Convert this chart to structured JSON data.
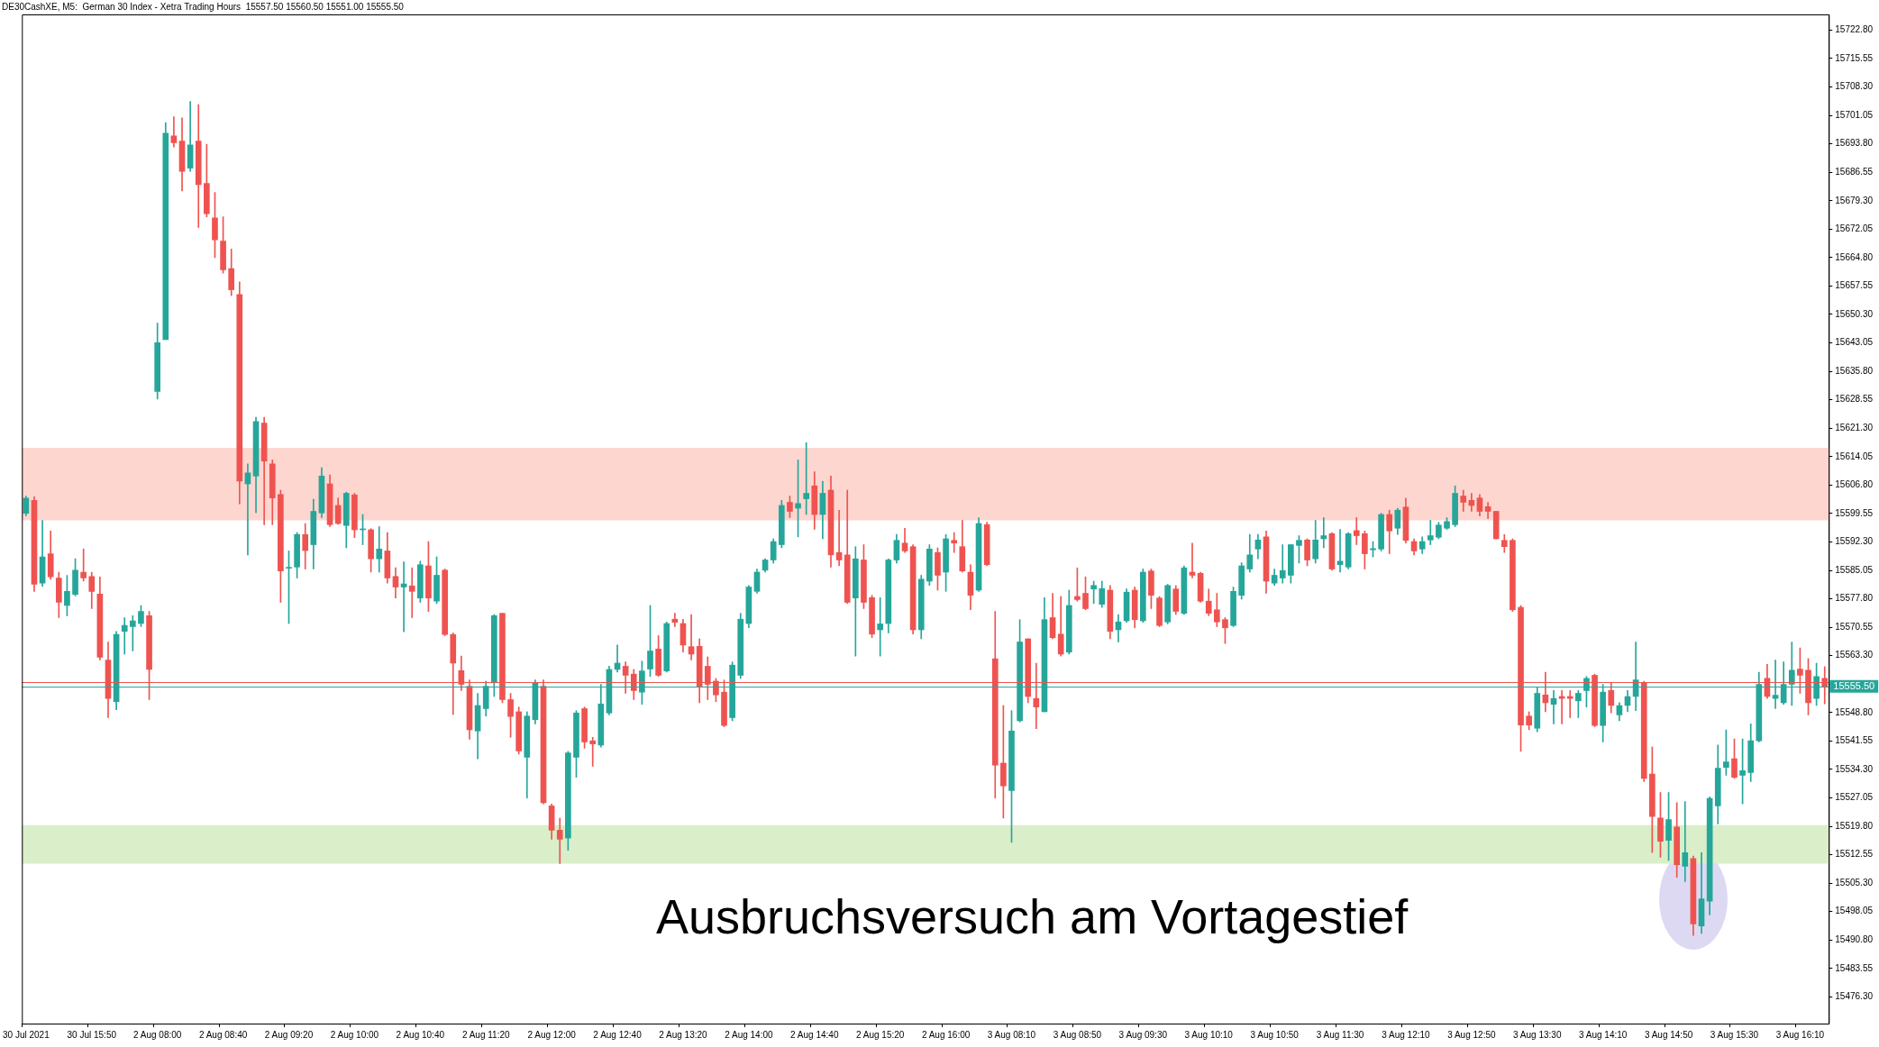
{
  "chart_data": {
    "type": "candlestick",
    "title": "DE30CashXE, M5:  German 30 Index - Xetra Trading Hours  15557.50 15560.50 15551.00 15555.50",
    "categories": [
      "30 Jul 2021",
      null,
      null,
      null,
      null,
      null,
      null,
      null,
      "30 Jul 15:50",
      null,
      null,
      null,
      null,
      null,
      null,
      null,
      "2 Aug 08:00",
      null,
      null,
      null,
      null,
      null,
      null,
      null,
      "2 Aug 08:40",
      null,
      null,
      null,
      null,
      null,
      null,
      null,
      "2 Aug 09:20",
      null,
      null,
      null,
      null,
      null,
      null,
      null,
      "2 Aug 10:00",
      null,
      null,
      null,
      null,
      null,
      null,
      null,
      "2 Aug 10:40",
      null,
      null,
      null,
      null,
      null,
      null,
      null,
      "2 Aug 11:20",
      null,
      null,
      null,
      null,
      null,
      null,
      null,
      "2 Aug 12:00",
      null,
      null,
      null,
      null,
      null,
      null,
      null,
      "2 Aug 12:40",
      null,
      null,
      null,
      null,
      null,
      null,
      null,
      "2 Aug 13:20",
      null,
      null,
      null,
      null,
      null,
      null,
      null,
      "2 Aug 14:00",
      null,
      null,
      null,
      null,
      null,
      null,
      null,
      "2 Aug 14:40",
      null,
      null,
      null,
      null,
      null,
      null,
      null,
      "2 Aug 15:20",
      null,
      null,
      null,
      null,
      null,
      null,
      null,
      "2 Aug 16:00",
      null,
      null,
      null,
      null,
      null,
      null,
      null,
      "3 Aug 08:10",
      null,
      null,
      null,
      null,
      null,
      null,
      null,
      "3 Aug 08:50",
      null,
      null,
      null,
      null,
      null,
      null,
      null,
      "3 Aug 09:30",
      null,
      null,
      null,
      null,
      null,
      null,
      null,
      "3 Aug 10:10",
      null,
      null,
      null,
      null,
      null,
      null,
      null,
      "3 Aug 10:50",
      null,
      null,
      null,
      null,
      null,
      null,
      null,
      "3 Aug 11:30",
      null,
      null,
      null,
      null,
      null,
      null,
      null,
      "3 Aug 12:10",
      null,
      null,
      null,
      null,
      null,
      null,
      null,
      "3 Aug 12:50",
      null,
      null,
      null,
      null,
      null,
      null,
      null,
      "3 Aug 13:30",
      null,
      null,
      null,
      null,
      null,
      null,
      null,
      "3 Aug 14:10",
      null,
      null,
      null,
      null,
      null,
      null,
      null,
      "3 Aug 14:50",
      null,
      null,
      null,
      null,
      null,
      null,
      null,
      "3 Aug 15:30",
      null,
      null,
      null,
      null,
      null,
      null,
      null,
      "3 Aug 16:10",
      null,
      null,
      null
    ],
    "ohlc": [
      [
        15599.6,
        15604.0,
        15599.0,
        15603.5
      ],
      [
        15602.9,
        15603.8,
        15579.7,
        15581.5
      ],
      [
        15581.8,
        15597.8,
        15581.0,
        15588.5
      ],
      [
        15589.3,
        15595.1,
        15582.8,
        15583.4
      ],
      [
        15583.1,
        15584.6,
        15573.0,
        15576.9
      ],
      [
        15576.1,
        15583.8,
        15573.5,
        15579.7
      ],
      [
        15578.9,
        15588.0,
        15578.5,
        15585.1
      ],
      [
        15584.6,
        15590.5,
        15582.3,
        15583.1
      ],
      [
        15583.5,
        15584.6,
        15575.3,
        15579.7
      ],
      [
        15579.0,
        15583.4,
        15562.2,
        15562.9
      ],
      [
        15562.2,
        15566.8,
        15547.5,
        15552.4
      ],
      [
        15551.6,
        15569.5,
        15549.5,
        15568.7
      ],
      [
        15569.5,
        15573.0,
        15563.7,
        15571.0
      ],
      [
        15570.7,
        15573.5,
        15564.5,
        15572.2
      ],
      [
        15571.5,
        15576.1,
        15570.7,
        15574.6
      ],
      [
        15573.5,
        15574.6,
        15552.1,
        15559.8
      ],
      [
        15630.7,
        15648.1,
        15628.7,
        15643.1
      ],
      [
        15643.9,
        15699.2,
        15643.9,
        15696.5
      ],
      [
        15695.8,
        15700.7,
        15693.0,
        15694.1
      ],
      [
        15694.5,
        15700.4,
        15681.8,
        15686.8
      ],
      [
        15687.6,
        15704.6,
        15686.8,
        15693.5
      ],
      [
        15694.5,
        15703.8,
        15672.5,
        15683.4
      ],
      [
        15683.7,
        15693.7,
        15675.2,
        15676.0
      ],
      [
        15674.9,
        15681.4,
        15664.8,
        15669.3
      ],
      [
        15669.0,
        15675.2,
        15660.8,
        15661.7
      ],
      [
        15662.0,
        15667.0,
        15655.1,
        15656.6
      ],
      [
        15655.4,
        15658.6,
        15602.0,
        15607.8
      ],
      [
        15607.1,
        15612.2,
        15589.0,
        15609.9
      ],
      [
        15609.1,
        15624.1,
        15599.8,
        15623.0
      ],
      [
        15622.6,
        15624.1,
        15596.7,
        15612.9
      ],
      [
        15612.2,
        15613.2,
        15596.7,
        15603.5
      ],
      [
        15604.4,
        15605.5,
        15576.9,
        15584.9
      ],
      [
        15585.6,
        15590.0,
        15571.5,
        15585.8
      ],
      [
        15585.9,
        15594.7,
        15583.1,
        15594.2
      ],
      [
        15594.2,
        15597.0,
        15585.4,
        15590.1
      ],
      [
        15591.6,
        15603.2,
        15585.4,
        15600.1
      ],
      [
        15599.7,
        15611.2,
        15598.5,
        15609.1
      ],
      [
        15607.1,
        15609.4,
        15596.2,
        15596.7
      ],
      [
        15601.6,
        15603.5,
        15596.8,
        15597.0
      ],
      [
        15596.5,
        15605.0,
        15590.8,
        15604.7
      ],
      [
        15604.3,
        15604.7,
        15593.4,
        15595.4
      ],
      [
        15595.4,
        15599.3,
        15591.6,
        15595.6
      ],
      [
        15595.4,
        15595.7,
        15584.6,
        15588.0
      ],
      [
        15588.0,
        15596.2,
        15584.6,
        15590.5
      ],
      [
        15590.0,
        15594.7,
        15581.8,
        15583.1
      ],
      [
        15583.5,
        15585.7,
        15578.0,
        15580.8
      ],
      [
        15580.8,
        15587.2,
        15569.4,
        15581.6
      ],
      [
        15581.1,
        15585.7,
        15573.0,
        15579.7
      ],
      [
        15578.0,
        15587.4,
        15576.9,
        15586.5
      ],
      [
        15586.2,
        15592.4,
        15574.6,
        15578.0
      ],
      [
        15577.2,
        15588.5,
        15576.6,
        15583.8
      ],
      [
        15585.1,
        15585.4,
        15568.4,
        15568.7
      ],
      [
        15568.7,
        15569.1,
        15548.3,
        15561.4
      ],
      [
        15559.5,
        15563.2,
        15554.4,
        15556.0
      ],
      [
        15555.5,
        15557.1,
        15542.0,
        15544.4
      ],
      [
        15544.1,
        15553.7,
        15537.0,
        15550.6
      ],
      [
        15549.8,
        15556.8,
        15547.9,
        15555.5
      ],
      [
        15556.4,
        15573.8,
        15552.9,
        15573.5
      ],
      [
        15574.1,
        15574.1,
        15551.3,
        15552.1
      ],
      [
        15552.1,
        15553.7,
        15542.5,
        15547.8
      ],
      [
        15549.0,
        15550.2,
        15538.2,
        15539.0
      ],
      [
        15537.4,
        15549.0,
        15527.0,
        15547.9
      ],
      [
        15547.0,
        15557.1,
        15545.9,
        15556.4
      ],
      [
        15555.5,
        15557.1,
        15525.5,
        15525.8
      ],
      [
        15525.0,
        15525.5,
        15516.5,
        15518.8
      ],
      [
        15518.8,
        15521.9,
        15510.3,
        15516.5
      ],
      [
        15516.8,
        15538.9,
        15513.7,
        15538.5
      ],
      [
        15537.4,
        15549.3,
        15532.3,
        15548.7
      ],
      [
        15549.8,
        15550.2,
        15539.7,
        15541.3
      ],
      [
        15541.6,
        15542.5,
        15535.1,
        15540.8
      ],
      [
        15540.5,
        15556.0,
        15540.0,
        15551.0
      ],
      [
        15548.7,
        15560.6,
        15548.2,
        15559.8
      ],
      [
        15559.8,
        15566.0,
        15559.1,
        15561.4
      ],
      [
        15560.6,
        15561.7,
        15553.7,
        15558.3
      ],
      [
        15558.6,
        15559.8,
        15552.1,
        15554.4
      ],
      [
        15554.0,
        15561.9,
        15550.9,
        15559.4
      ],
      [
        15559.9,
        15576.1,
        15558.0,
        15564.5
      ],
      [
        15565.0,
        15568.4,
        15558.0,
        15558.3
      ],
      [
        15559.4,
        15571.9,
        15559.1,
        15571.5
      ],
      [
        15572.6,
        15574.1,
        15570.7,
        15571.8
      ],
      [
        15571.5,
        15572.6,
        15564.2,
        15566.0
      ],
      [
        15565.6,
        15573.8,
        15562.2,
        15563.7
      ],
      [
        15565.7,
        15567.6,
        15551.3,
        15555.5
      ],
      [
        15560.6,
        15563.0,
        15552.1,
        15556.0
      ],
      [
        15556.8,
        15557.5,
        15551.6,
        15553.3
      ],
      [
        15554.0,
        15557.1,
        15545.2,
        15545.5
      ],
      [
        15547.5,
        15561.7,
        15546.7,
        15560.9
      ],
      [
        15558.3,
        15574.1,
        15557.5,
        15572.6
      ],
      [
        15571.5,
        15581.2,
        15570.4,
        15580.8
      ],
      [
        15579.7,
        15585.4,
        15579.2,
        15584.6
      ],
      [
        15585.1,
        15588.0,
        15584.6,
        15587.7
      ],
      [
        15587.7,
        15593.1,
        15586.9,
        15592.4
      ],
      [
        15591.6,
        15602.9,
        15590.8,
        15601.6
      ],
      [
        15602.4,
        15604.0,
        15598.5,
        15600.1
      ],
      [
        15600.9,
        15613.2,
        15593.6,
        15602.1
      ],
      [
        15603.3,
        15617.6,
        15599.3,
        15604.7
      ],
      [
        15606.6,
        15610.2,
        15595.5,
        15599.3
      ],
      [
        15599.3,
        15607.8,
        15593.1,
        15604.7
      ],
      [
        15605.5,
        15609.1,
        15585.9,
        15589.0
      ],
      [
        15589.6,
        15600.4,
        15586.2,
        15587.7
      ],
      [
        15589.0,
        15605.5,
        15576.6,
        15576.9
      ],
      [
        15578.0,
        15591.1,
        15563.2,
        15588.0
      ],
      [
        15587.7,
        15591.6,
        15575.3,
        15576.9
      ],
      [
        15578.1,
        15578.7,
        15567.9,
        15568.8
      ],
      [
        15569.9,
        15578.1,
        15563.2,
        15571.4
      ],
      [
        15571.5,
        15588.0,
        15569.1,
        15587.7
      ],
      [
        15587.7,
        15594.2,
        15586.9,
        15592.7
      ],
      [
        15592.0,
        15595.8,
        15589.6,
        15590.0
      ],
      [
        15591.1,
        15591.6,
        15568.8,
        15569.9
      ],
      [
        15569.9,
        15583.8,
        15567.6,
        15582.8
      ],
      [
        15582.3,
        15591.6,
        15581.2,
        15590.5
      ],
      [
        15589.6,
        15590.8,
        15580.0,
        15583.8
      ],
      [
        15584.6,
        15594.2,
        15579.7,
        15593.1
      ],
      [
        15592.7,
        15594.7,
        15589.6,
        15592.0
      ],
      [
        15591.1,
        15597.8,
        15584.6,
        15584.9
      ],
      [
        15584.6,
        15586.5,
        15575.0,
        15578.7
      ],
      [
        15580.0,
        15598.5,
        15579.7,
        15597.0
      ],
      [
        15596.7,
        15597.3,
        15586.2,
        15586.5
      ],
      [
        15562.5,
        15574.6,
        15527.0,
        15535.4
      ],
      [
        15535.9,
        15550.6,
        15521.9,
        15530.1
      ],
      [
        15528.9,
        15549.3,
        15515.7,
        15544.1
      ],
      [
        15546.7,
        15572.5,
        15546.4,
        15566.8
      ],
      [
        15567.6,
        15567.6,
        15551.3,
        15552.9
      ],
      [
        15552.4,
        15561.4,
        15544.7,
        15550.2
      ],
      [
        15549.0,
        15578.1,
        15549.0,
        15572.5
      ],
      [
        15573.0,
        15579.2,
        15567.6,
        15567.9
      ],
      [
        15568.8,
        15578.4,
        15563.2,
        15563.7
      ],
      [
        15564.2,
        15580.0,
        15563.7,
        15576.1
      ],
      [
        15578.4,
        15585.7,
        15577.2,
        15577.6
      ],
      [
        15579.2,
        15583.4,
        15575.0,
        15575.3
      ],
      [
        15580.3,
        15582.3,
        15576.6,
        15581.2
      ],
      [
        15576.4,
        15582.3,
        15575.6,
        15580.4
      ],
      [
        15580.0,
        15581.2,
        15567.6,
        15569.5
      ],
      [
        15569.9,
        15573.8,
        15566.8,
        15571.9
      ],
      [
        15572.2,
        15580.3,
        15571.8,
        15579.5
      ],
      [
        15580.0,
        15580.8,
        15570.4,
        15572.5
      ],
      [
        15572.2,
        15585.4,
        15571.8,
        15584.6
      ],
      [
        15584.9,
        15585.4,
        15575.3,
        15578.7
      ],
      [
        15578.0,
        15578.4,
        15570.7,
        15571.0
      ],
      [
        15571.9,
        15581.5,
        15571.4,
        15581.2
      ],
      [
        15580.3,
        15581.2,
        15573.8,
        15574.6
      ],
      [
        15574.1,
        15586.2,
        15573.8,
        15585.7
      ],
      [
        15584.6,
        15592.0,
        15583.1,
        15583.8
      ],
      [
        15584.3,
        15584.6,
        15576.9,
        15577.2
      ],
      [
        15577.2,
        15580.3,
        15573.5,
        15574.1
      ],
      [
        15575.0,
        15579.2,
        15570.7,
        15571.9
      ],
      [
        15572.5,
        15573.0,
        15566.4,
        15570.4
      ],
      [
        15571.0,
        15580.8,
        15570.7,
        15579.7
      ],
      [
        15578.7,
        15587.0,
        15577.7,
        15586.2
      ],
      [
        15585.4,
        15594.2,
        15584.6,
        15589.0
      ],
      [
        15590.5,
        15594.2,
        15588.0,
        15592.8
      ],
      [
        15593.6,
        15595.1,
        15579.2,
        15582.3
      ],
      [
        15581.8,
        15585.4,
        15581.2,
        15583.8
      ],
      [
        15583.1,
        15591.6,
        15581.8,
        15585.0
      ],
      [
        15583.8,
        15591.6,
        15581.8,
        15591.6
      ],
      [
        15591.4,
        15593.9,
        15586.9,
        15592.7
      ],
      [
        15592.8,
        15593.1,
        15586.2,
        15587.7
      ],
      [
        15588.0,
        15597.8,
        15586.9,
        15592.8
      ],
      [
        15593.1,
        15598.5,
        15590.8,
        15593.9
      ],
      [
        15594.4,
        15594.7,
        15585.1,
        15585.4
      ],
      [
        15586.5,
        15595.5,
        15584.6,
        15587.4
      ],
      [
        15585.9,
        15594.7,
        15585.4,
        15594.4
      ],
      [
        15595.2,
        15598.5,
        15591.6,
        15593.9
      ],
      [
        15594.4,
        15595.1,
        15585.4,
        15589.3
      ],
      [
        15590.3,
        15592.4,
        15588.5,
        15590.6
      ],
      [
        15590.5,
        15599.6,
        15590.0,
        15599.3
      ],
      [
        15599.3,
        15600.4,
        15589.3,
        15595.1
      ],
      [
        15595.8,
        15600.9,
        15594.2,
        15600.4
      ],
      [
        15601.2,
        15603.5,
        15592.0,
        15592.7
      ],
      [
        15592.4,
        15593.1,
        15589.0,
        15590.0
      ],
      [
        15590.5,
        15593.6,
        15589.3,
        15592.4
      ],
      [
        15592.8,
        15597.8,
        15591.6,
        15593.9
      ],
      [
        15593.5,
        15597.3,
        15593.1,
        15596.6
      ],
      [
        15595.8,
        15598.5,
        15595.5,
        15597.5
      ],
      [
        15596.7,
        15606.6,
        15596.2,
        15604.7
      ],
      [
        15604.0,
        15605.5,
        15600.1,
        15602.4
      ],
      [
        15602.9,
        15604.7,
        15600.1,
        15601.6
      ],
      [
        15603.5,
        15604.4,
        15598.9,
        15600.1
      ],
      [
        15601.3,
        15602.4,
        15598.2,
        15600.1
      ],
      [
        15600.1,
        15600.1,
        15593.1,
        15593.1
      ],
      [
        15592.7,
        15594.2,
        15589.6,
        15591.1
      ],
      [
        15592.7,
        15593.1,
        15574.6,
        15575.0
      ],
      [
        15575.6,
        15576.1,
        15538.9,
        15545.6
      ],
      [
        15547.9,
        15549.0,
        15544.4,
        15545.6
      ],
      [
        15544.8,
        15555.2,
        15543.9,
        15553.7
      ],
      [
        15553.3,
        15559.1,
        15549.0,
        15551.3
      ],
      [
        15550.9,
        15554.4,
        15545.9,
        15552.4
      ],
      [
        15552.9,
        15554.4,
        15545.9,
        15552.4
      ],
      [
        15552.9,
        15554.4,
        15547.5,
        15552.4
      ],
      [
        15551.8,
        15554.4,
        15547.5,
        15553.7
      ],
      [
        15554.4,
        15558.0,
        15550.2,
        15557.5
      ],
      [
        15558.3,
        15558.6,
        15545.2,
        15545.5
      ],
      [
        15545.5,
        15556.0,
        15541.3,
        15554.0
      ],
      [
        15554.4,
        15556.4,
        15548.7,
        15550.6
      ],
      [
        15548.2,
        15551.3,
        15546.7,
        15550.6
      ],
      [
        15550.6,
        15554.4,
        15549.0,
        15552.9
      ],
      [
        15552.9,
        15566.8,
        15549.3,
        15557.1
      ],
      [
        15556.4,
        15556.8,
        15531.2,
        15532.0
      ],
      [
        15533.1,
        15540.0,
        15513.1,
        15522.3
      ],
      [
        15521.9,
        15528.4,
        15511.9,
        15516.0
      ],
      [
        15516.2,
        15528.4,
        15511.1,
        15521.5
      ],
      [
        15519.6,
        15525.8,
        15506.8,
        15510.0
      ],
      [
        15509.6,
        15526.1,
        15505.7,
        15513.1
      ],
      [
        15511.6,
        15512.2,
        15492.0,
        15494.9
      ],
      [
        15494.4,
        15513.1,
        15492.5,
        15501.3
      ],
      [
        15500.7,
        15527.3,
        15497.2,
        15526.9
      ],
      [
        15525.0,
        15540.5,
        15520.4,
        15534.6
      ],
      [
        15534.8,
        15544.4,
        15532.8,
        15536.2
      ],
      [
        15537.0,
        15542.1,
        15532.0,
        15532.3
      ],
      [
        15532.8,
        15542.1,
        15525.5,
        15534.0
      ],
      [
        15533.5,
        15545.9,
        15531.2,
        15541.6
      ],
      [
        15541.6,
        15559.1,
        15541.3,
        15556.0
      ],
      [
        15557.5,
        15561.1,
        15552.4,
        15552.9
      ],
      [
        15552.4,
        15562.2,
        15549.8,
        15553.2
      ],
      [
        15551.3,
        15561.7,
        15550.9,
        15556.0
      ],
      [
        15556.0,
        15566.8,
        15550.6,
        15559.6
      ],
      [
        15559.9,
        15565.3,
        15553.7,
        15558.3
      ],
      [
        15559.6,
        15562.6,
        15548.2,
        15551.3
      ],
      [
        15552.4,
        15561.4,
        15550.6,
        15558.0
      ],
      [
        15557.5,
        15560.5,
        15551.0,
        15555.5
      ]
    ],
    "colors": [
      "#26a69a",
      "#ef5350",
      "#26a69a",
      "#ef5350",
      "#ef5350",
      "#26a69a",
      "#26a69a",
      "#ef5350",
      "#ef5350",
      "#ef5350",
      "#ef5350",
      "#26a69a",
      "#26a69a",
      "#26a69a",
      "#26a69a",
      "#ef5350",
      "#26a69a",
      "#26a69a",
      "#ef5350",
      "#ef5350",
      "#26a69a",
      "#ef5350",
      "#ef5350",
      "#ef5350",
      "#ef5350",
      "#ef5350",
      "#ef5350",
      "#26a69a",
      "#26a69a",
      "#ef5350",
      "#ef5350",
      "#ef5350",
      "#26a69a",
      "#26a69a",
      "#ef5350",
      "#26a69a",
      "#26a69a",
      "#ef5350",
      "#ef5350",
      "#26a69a",
      "#ef5350",
      "#26a69a",
      "#ef5350",
      "#26a69a",
      "#ef5350",
      "#ef5350",
      "#26a69a",
      "#ef5350",
      "#26a69a",
      "#ef5350",
      "#26a69a",
      "#ef5350",
      "#ef5350",
      "#ef5350",
      "#ef5350",
      "#26a69a",
      "#26a69a",
      "#26a69a",
      "#ef5350",
      "#ef5350",
      "#ef5350",
      "#26a69a",
      "#26a69a",
      "#ef5350",
      "#ef5350",
      "#ef5350",
      "#26a69a",
      "#26a69a",
      "#ef5350",
      "#ef5350",
      "#26a69a",
      "#26a69a",
      "#26a69a",
      "#ef5350",
      "#ef5350",
      "#26a69a",
      "#26a69a",
      "#ef5350",
      "#26a69a",
      "#ef5350",
      "#ef5350",
      "#ef5350",
      "#ef5350",
      "#ef5350",
      "#ef5350",
      "#ef5350",
      "#26a69a",
      "#26a69a",
      "#26a69a",
      "#26a69a",
      "#26a69a",
      "#26a69a",
      "#26a69a",
      "#ef5350",
      "#26a69a",
      "#26a69a",
      "#ef5350",
      "#26a69a",
      "#ef5350",
      "#ef5350",
      "#ef5350",
      "#26a69a",
      "#ef5350",
      "#ef5350",
      "#26a69a",
      "#26a69a",
      "#26a69a",
      "#ef5350",
      "#ef5350",
      "#26a69a",
      "#26a69a",
      "#ef5350",
      "#26a69a",
      "#ef5350",
      "#ef5350",
      "#ef5350",
      "#26a69a",
      "#ef5350",
      "#ef5350",
      "#ef5350",
      "#26a69a",
      "#26a69a",
      "#ef5350",
      "#ef5350",
      "#26a69a",
      "#ef5350",
      "#ef5350",
      "#26a69a",
      "#ef5350",
      "#ef5350",
      "#26a69a",
      "#26a69a",
      "#ef5350",
      "#26a69a",
      "#26a69a",
      "#ef5350",
      "#26a69a",
      "#ef5350",
      "#ef5350",
      "#26a69a",
      "#ef5350",
      "#26a69a",
      "#ef5350",
      "#ef5350",
      "#ef5350",
      "#ef5350",
      "#ef5350",
      "#26a69a",
      "#26a69a",
      "#26a69a",
      "#26a69a",
      "#ef5350",
      "#26a69a",
      "#26a69a",
      "#26a69a",
      "#26a69a",
      "#ef5350",
      "#26a69a",
      "#26a69a",
      "#ef5350",
      "#26a69a",
      "#26a69a",
      "#ef5350",
      "#ef5350",
      "#26a69a",
      "#26a69a",
      "#ef5350",
      "#26a69a",
      "#ef5350",
      "#ef5350",
      "#26a69a",
      "#26a69a",
      "#26a69a",
      "#26a69a",
      "#26a69a",
      "#ef5350",
      "#ef5350",
      "#ef5350",
      "#ef5350",
      "#ef5350",
      "#ef5350",
      "#ef5350",
      "#ef5350",
      "#ef5350",
      "#26a69a",
      "#ef5350",
      "#26a69a",
      "#ef5350",
      "#ef5350",
      "#26a69a",
      "#26a69a",
      "#ef5350",
      "#26a69a",
      "#ef5350",
      "#26a69a",
      "#26a69a",
      "#26a69a",
      "#ef5350",
      "#ef5350",
      "#ef5350",
      "#26a69a",
      "#ef5350",
      "#26a69a",
      "#ef5350",
      "#26a69a",
      "#26a69a",
      "#26a69a",
      "#26a69a",
      "#ef5350",
      "#26a69a",
      "#26a69a",
      "#26a69a",
      "#ef5350",
      "#26a69a",
      "#26a69a",
      "#26a69a",
      "#ef5350",
      "#ef5350",
      "#26a69a",
      "#ef5350"
    ],
    "ylim": [
      15469.5,
      15726.8
    ],
    "yticks": [
      {
        "value": 15476.3,
        "label": "15476.30"
      },
      {
        "value": 15483.55,
        "label": "15483.55"
      },
      {
        "value": 15490.8,
        "label": "15490.80"
      },
      {
        "value": 15498.05,
        "label": "15498.05"
      },
      {
        "value": 15505.3,
        "label": "15505.30"
      },
      {
        "value": 15512.55,
        "label": "15512.55"
      },
      {
        "value": 15519.8,
        "label": "15519.80"
      },
      {
        "value": 15527.05,
        "label": "15527.05"
      },
      {
        "value": 15534.3,
        "label": "15534.30"
      },
      {
        "value": 15541.55,
        "label": "15541.55"
      },
      {
        "value": 15548.8,
        "label": "15548.80"
      },
      {
        "value": 15556.05,
        "label": null
      },
      {
        "value": 15563.3,
        "label": "15563.30"
      },
      {
        "value": 15570.55,
        "label": "15570.55"
      },
      {
        "value": 15577.8,
        "label": "15577.80"
      },
      {
        "value": 15585.05,
        "label": "15585.05"
      },
      {
        "value": 15592.3,
        "label": "15592.30"
      },
      {
        "value": 15599.55,
        "label": "15599.55"
      },
      {
        "value": 15606.8,
        "label": "15606.80"
      },
      {
        "value": 15614.05,
        "label": "15614.05"
      },
      {
        "value": 15621.3,
        "label": "15621.30"
      },
      {
        "value": 15628.55,
        "label": "15628.55"
      },
      {
        "value": 15635.8,
        "label": "15635.80"
      },
      {
        "value": 15643.05,
        "label": "15643.05"
      },
      {
        "value": 15650.3,
        "label": "15650.30"
      },
      {
        "value": 15657.55,
        "label": "15657.55"
      },
      {
        "value": 15664.8,
        "label": "15664.80"
      },
      {
        "value": 15672.05,
        "label": "15672.05"
      },
      {
        "value": 15679.3,
        "label": "15679.30"
      },
      {
        "value": 15686.55,
        "label": "15686.55"
      },
      {
        "value": 15693.8,
        "label": "15693.80"
      },
      {
        "value": 15701.05,
        "label": "15701.05"
      },
      {
        "value": 15708.3,
        "label": "15708.30"
      },
      {
        "value": 15715.55,
        "label": "15715.55"
      },
      {
        "value": 15722.8,
        "label": "15722.80"
      }
    ],
    "bands": [
      {
        "axis": "y",
        "from": 15597.8,
        "to": 15616.3,
        "color": "#fdd6cf"
      },
      {
        "axis": "y",
        "from": 15510.3,
        "to": 15520.1,
        "color": "#d9eec9"
      }
    ],
    "ref_lines": [
      {
        "axis": "y",
        "value": 15556.5,
        "color": "#ef5350"
      },
      {
        "axis": "y",
        "value": 15555.5,
        "label": "15555.50",
        "color": "#26a69a"
      }
    ],
    "annotations": [
      "Ausbruchsversuch am Vortagestief"
    ]
  }
}
